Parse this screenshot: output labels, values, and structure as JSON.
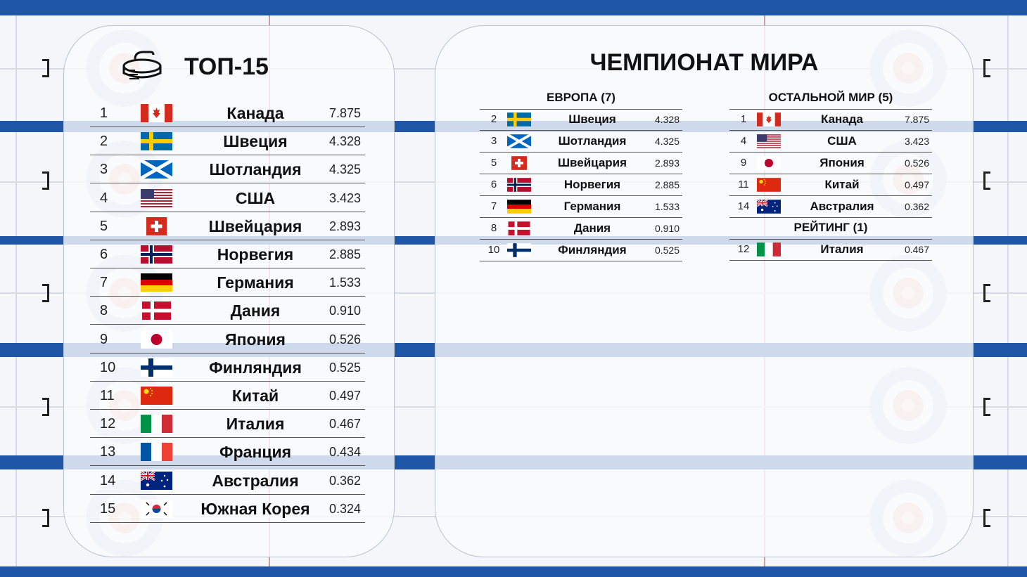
{
  "top15": {
    "title": "ТОП-15",
    "rows": [
      {
        "rank": "1",
        "country": "Канада",
        "value": "7.875",
        "flag": "canada-flag-icon"
      },
      {
        "rank": "2",
        "country": "Швеция",
        "value": "4.328",
        "flag": "sweden-flag-icon"
      },
      {
        "rank": "3",
        "country": "Шотландия",
        "value": "4.325",
        "flag": "scotland-flag-icon"
      },
      {
        "rank": "4",
        "country": "США",
        "value": "3.423",
        "flag": "usa-flag-icon"
      },
      {
        "rank": "5",
        "country": "Швейцария",
        "value": "2.893",
        "flag": "switzerland-flag-icon"
      },
      {
        "rank": "6",
        "country": "Норвегия",
        "value": "2.885",
        "flag": "norway-flag-icon"
      },
      {
        "rank": "7",
        "country": "Германия",
        "value": "1.533",
        "flag": "germany-flag-icon"
      },
      {
        "rank": "8",
        "country": "Дания",
        "value": "0.910",
        "flag": "denmark-flag-icon"
      },
      {
        "rank": "9",
        "country": "Япония",
        "value": "0.526",
        "flag": "japan-flag-icon"
      },
      {
        "rank": "10",
        "country": "Финляндия",
        "value": "0.525",
        "flag": "finland-flag-icon"
      },
      {
        "rank": "11",
        "country": "Китай",
        "value": "0.497",
        "flag": "china-flag-icon"
      },
      {
        "rank": "12",
        "country": "Италия",
        "value": "0.467",
        "flag": "italy-flag-icon"
      },
      {
        "rank": "13",
        "country": "Франция",
        "value": "0.434",
        "flag": "france-flag-icon"
      },
      {
        "rank": "14",
        "country": "Австралия",
        "value": "0.362",
        "flag": "australia-flag-icon"
      },
      {
        "rank": "15",
        "country": "Южная Корея",
        "value": "0.324",
        "flag": "south-korea-flag-icon"
      }
    ]
  },
  "championship": {
    "title": "ЧЕМПИОНАТ МИРА",
    "europe": {
      "title": "ЕВРОПА (7)",
      "rows": [
        {
          "rank": "2",
          "country": "Швеция",
          "value": "4.328",
          "flag": "sweden-flag-icon"
        },
        {
          "rank": "3",
          "country": "Шотландия",
          "value": "4.325",
          "flag": "scotland-flag-icon"
        },
        {
          "rank": "5",
          "country": "Швейцария",
          "value": "2.893",
          "flag": "switzerland-flag-icon"
        },
        {
          "rank": "6",
          "country": "Норвегия",
          "value": "2.885",
          "flag": "norway-flag-icon"
        },
        {
          "rank": "7",
          "country": "Германия",
          "value": "1.533",
          "flag": "germany-flag-icon"
        },
        {
          "rank": "8",
          "country": "Дания",
          "value": "0.910",
          "flag": "denmark-flag-icon"
        },
        {
          "rank": "10",
          "country": "Финляндия",
          "value": "0.525",
          "flag": "finland-flag-icon"
        }
      ]
    },
    "rest": {
      "title": "ОСТАЛЬНОЙ МИР (5)",
      "rows": [
        {
          "rank": "1",
          "country": "Канада",
          "value": "7.875",
          "flag": "canada-flag-icon"
        },
        {
          "rank": "4",
          "country": "США",
          "value": "3.423",
          "flag": "usa-flag-icon"
        },
        {
          "rank": "9",
          "country": "Япония",
          "value": "0.526",
          "flag": "japan-flag-icon"
        },
        {
          "rank": "11",
          "country": "Китай",
          "value": "0.497",
          "flag": "china-flag-icon"
        },
        {
          "rank": "14",
          "country": "Австралия",
          "value": "0.362",
          "flag": "australia-flag-icon"
        }
      ]
    },
    "rating": {
      "title": "РЕЙТИНГ (1)",
      "rows": [
        {
          "rank": "12",
          "country": "Италия",
          "value": "0.467",
          "flag": "italy-flag-icon"
        }
      ]
    }
  },
  "colors": {
    "background_blue": "#1f56a8",
    "panel": "#f4f6fa"
  }
}
